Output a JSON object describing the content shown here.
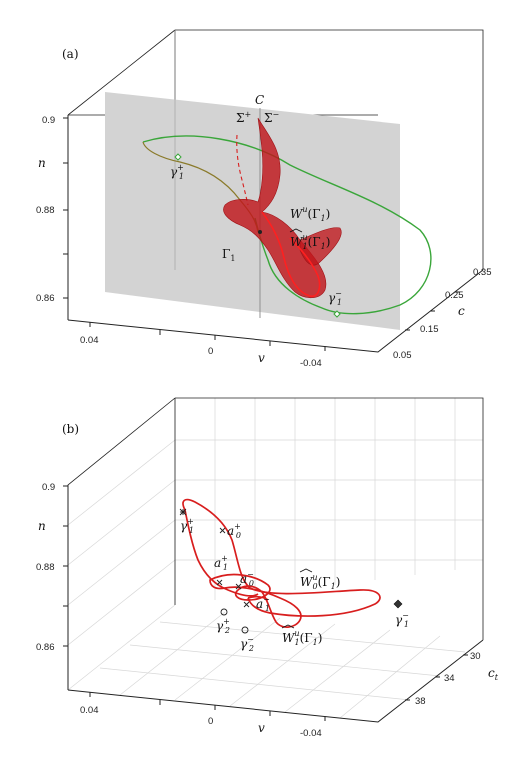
{
  "panel_a": {
    "label": "(a)",
    "y_axis_label": "n",
    "x_axis_label": "v",
    "z_axis_label": "c",
    "y_ticks": [
      "0.9",
      "0.88",
      "0.86"
    ],
    "x_ticks": [
      "0.04",
      "0",
      "-0.04"
    ],
    "z_ticks": [
      "0.35",
      "0.25",
      "0.15",
      "0.05"
    ],
    "annotations": {
      "C": "C",
      "sigma_plus": "Σ",
      "sigma_plus_sup": "+",
      "sigma_minus": "Σ",
      "sigma_minus_sup": "−",
      "gamma1_plus": "γ",
      "gamma1_plus_sub": "1",
      "gamma1_plus_sup": "+",
      "gamma1_minus": "γ",
      "gamma1_minus_sub": "1",
      "gamma1_minus_sup": "−",
      "Wu": "W",
      "Wu_sup": "u",
      "Wu_arg": "(Γ",
      "Wu_arg_sub": "1",
      "Wu_arg_close": ")",
      "Wu_hat": "W",
      "Wu_hat_sup": "u",
      "Wu_hat_sub": "1",
      "Wu_hat_arg": "(Γ",
      "Wu_hat_arg_sub": "1",
      "Wu_hat_arg_close": ")",
      "Gamma1": "Γ",
      "Gamma1_sub": "1"
    }
  },
  "panel_b": {
    "label": "(b)",
    "y_axis_label": "n",
    "x_axis_label": "v",
    "z_axis_label": "c",
    "z_axis_label_sub": "t",
    "y_ticks": [
      "0.9",
      "0.88",
      "0.86"
    ],
    "x_ticks": [
      "0.04",
      "0",
      "-0.04"
    ],
    "z_ticks": [
      "30",
      "34",
      "38"
    ],
    "annotations": {
      "gamma1_plus": "γ",
      "gamma1_plus_sub": "1",
      "gamma1_plus_sup": "+",
      "a0_plus": "a",
      "a0_plus_sub": "0",
      "a0_plus_sup": "+",
      "a1_plus": "a",
      "a1_plus_sub": "1",
      "a1_plus_sup": "+",
      "a0_minus": "a",
      "a0_minus_sub": "0",
      "a0_minus_sup": "−",
      "a1_minus": "a",
      "a1_minus_sub": "1",
      "a1_minus_sup": "−",
      "gamma2_plus": "γ",
      "gamma2_plus_sub": "2",
      "gamma2_plus_sup": "+",
      "gamma2_minus": "γ",
      "gamma2_minus_sub": "2",
      "gamma2_minus_sup": "−",
      "gamma1_minus": "γ",
      "gamma1_minus_sub": "1",
      "gamma1_minus_sup": "−",
      "W0": "W",
      "W0_sup": "u",
      "W0_sub": "0",
      "W0_arg": "(Γ",
      "W0_arg_sub": "1",
      "W0_arg_close": ")",
      "W1": "W",
      "W1_sup": "u",
      "W1_sub": "1",
      "W1_arg": "(Γ",
      "W1_arg_sub": "1",
      "W1_arg_close": ")"
    }
  },
  "colors": {
    "manifold_red": "#d81e1e",
    "surface_red": "#c0161b",
    "orbit_green": "#3aa63a",
    "orbit_olive": "#8a7a2a",
    "plane_gray": "#d3d3d3",
    "grid": "#d8d8d8"
  }
}
